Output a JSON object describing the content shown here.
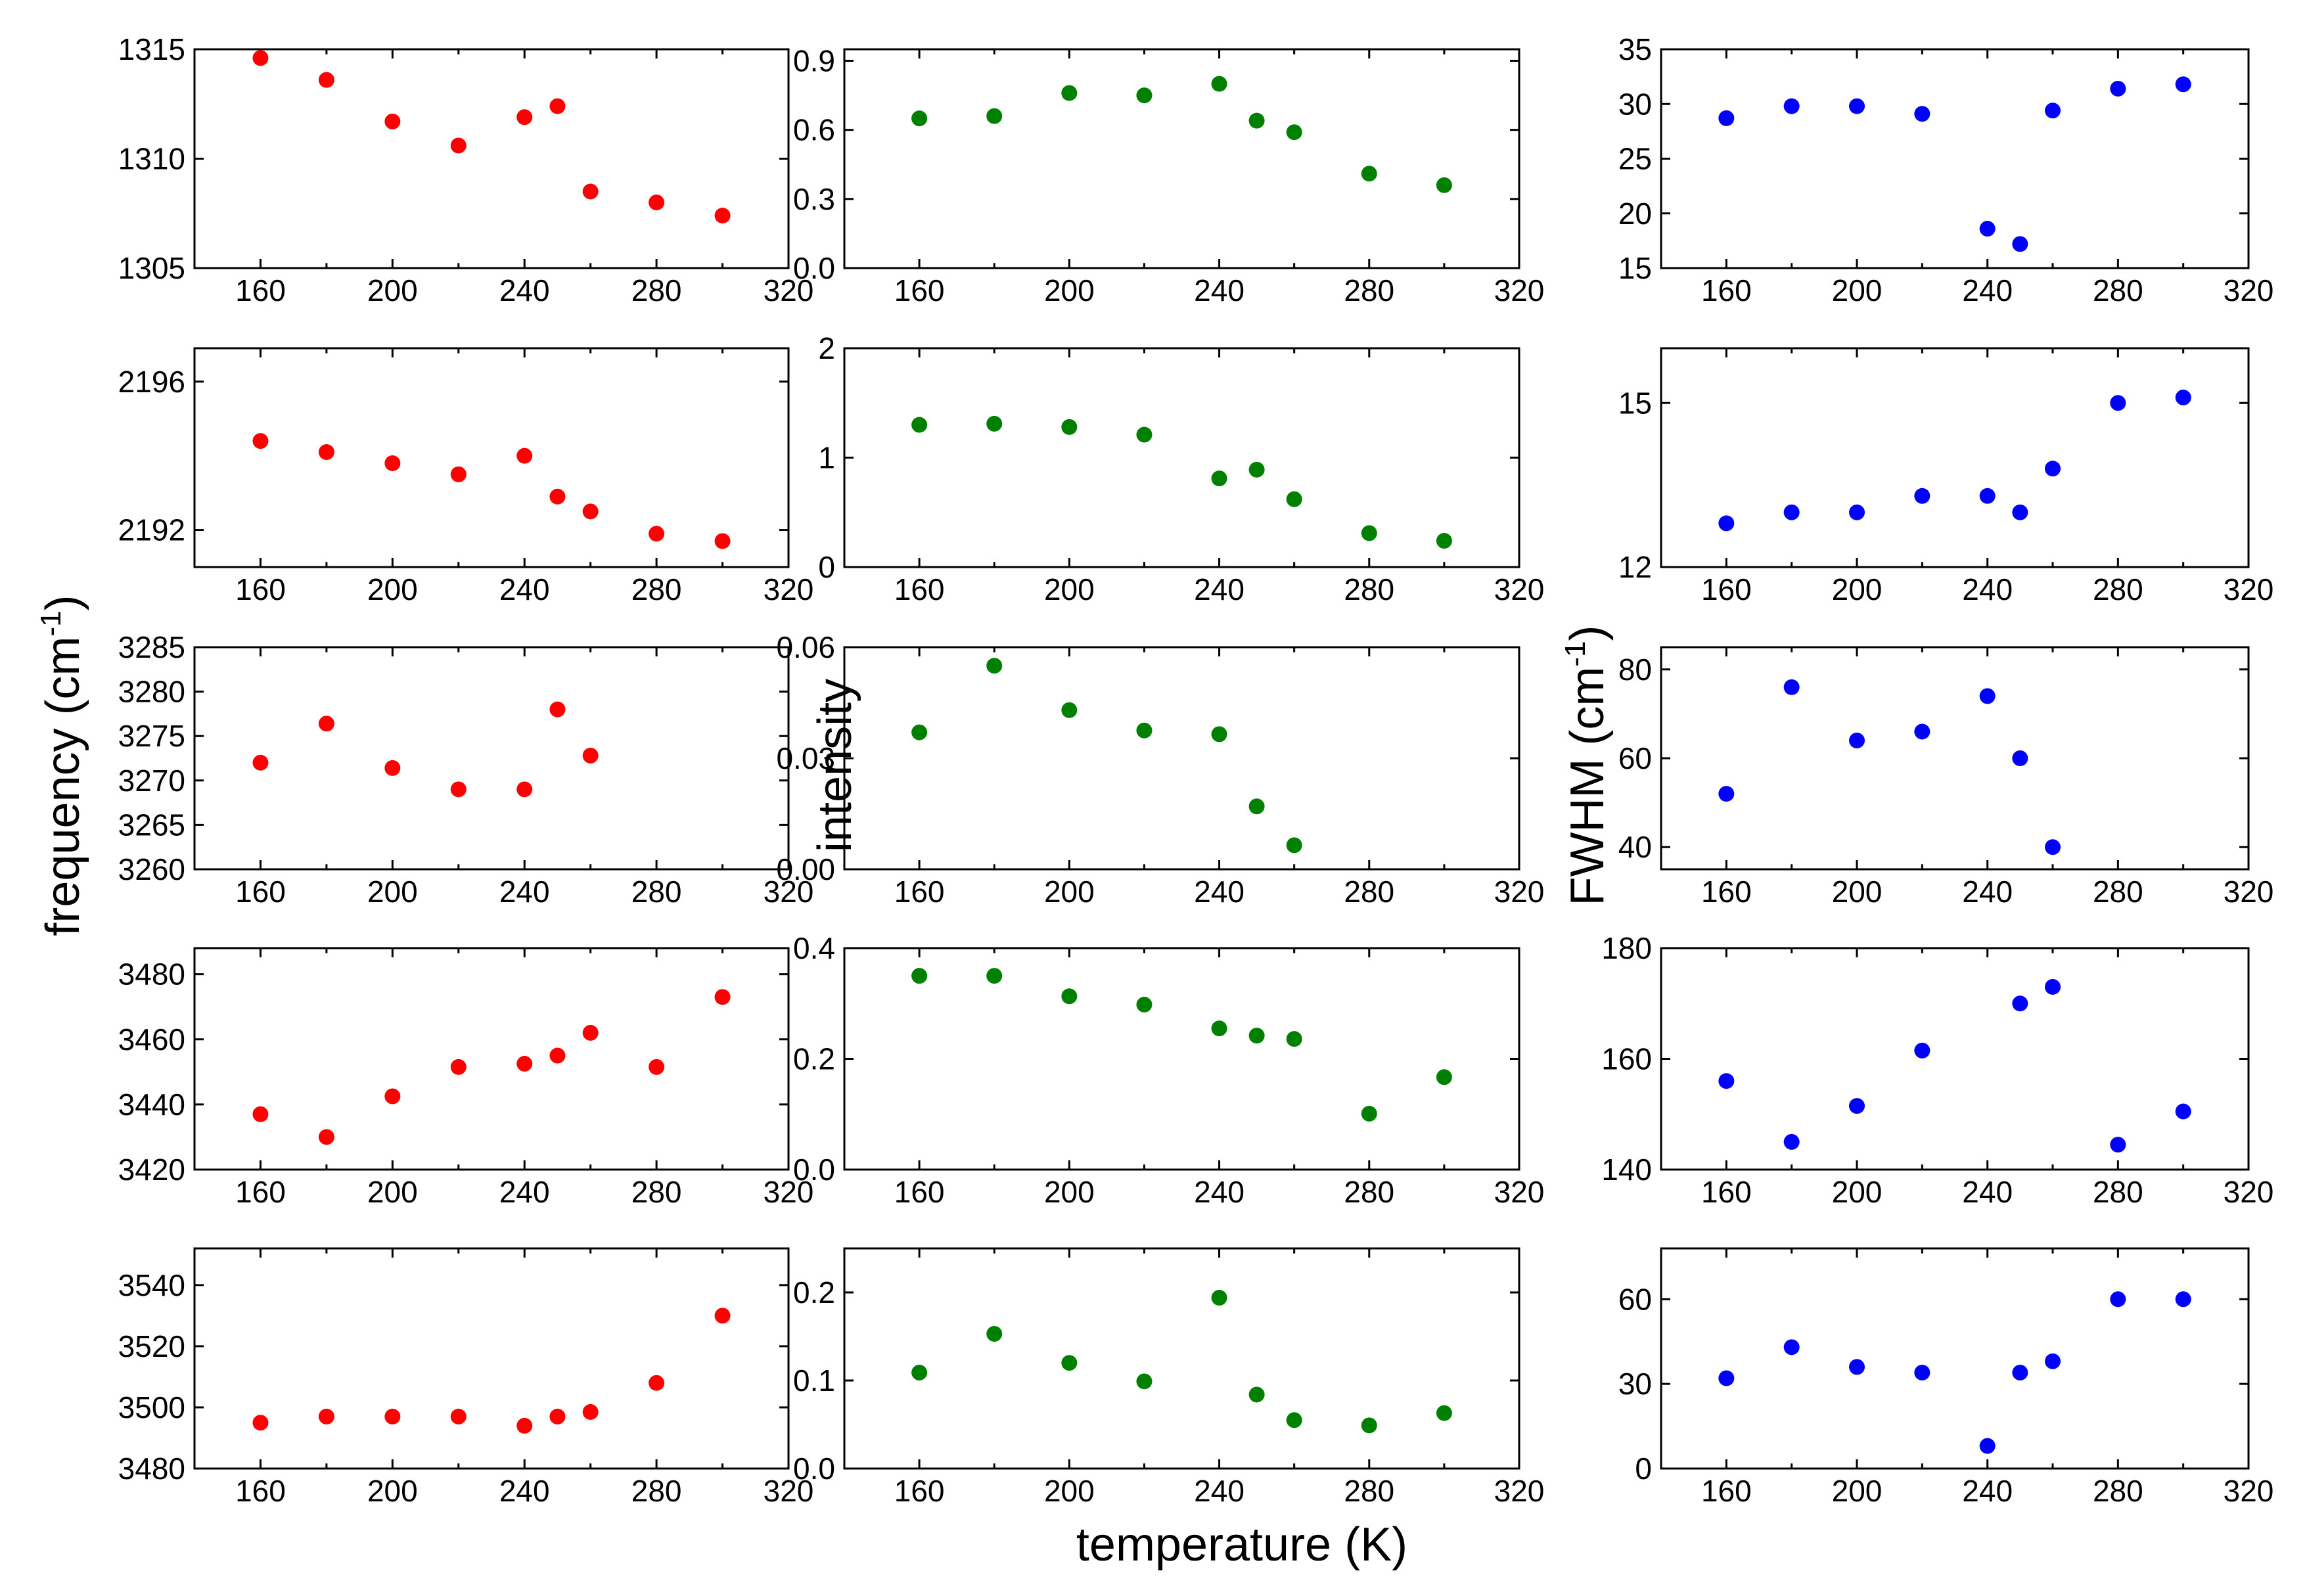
{
  "figure": {
    "ylabels": {
      "left": "frequency (cm",
      "middle": "intensity",
      "right": "FWHM (cm"
    },
    "ylabel_unit_exp": "-1",
    "ylabel_close": ")",
    "xlabel": "temperature (K)"
  },
  "colors": {
    "frequency": "#ff0000",
    "intensity": "#008000",
    "fwhm": "#0000ff"
  },
  "chart_data": [
    {
      "type": "scatter",
      "row": 0,
      "col": 0,
      "quantity": "frequency",
      "x": [
        160,
        180,
        200,
        220,
        240,
        250,
        260,
        280,
        300
      ],
      "y": [
        1314.6,
        1313.6,
        1311.7,
        1310.6,
        1311.9,
        1312.4,
        1308.5,
        1308.0,
        1307.4
      ],
      "xlim": [
        140,
        320
      ],
      "xticks": [
        160,
        200,
        240,
        280,
        320
      ],
      "ylim": [
        1305,
        1315
      ],
      "yticks": [
        1305,
        1310,
        1315
      ],
      "ytick_labels": [
        "1305",
        "1310",
        "1315"
      ]
    },
    {
      "type": "scatter",
      "row": 0,
      "col": 1,
      "quantity": "intensity",
      "x": [
        160,
        180,
        200,
        220,
        240,
        250,
        260,
        280,
        300
      ],
      "y": [
        0.65,
        0.66,
        0.76,
        0.75,
        0.8,
        0.64,
        0.59,
        0.41,
        0.36
      ],
      "xlim": [
        140,
        320
      ],
      "xticks": [
        160,
        200,
        240,
        280,
        320
      ],
      "ylim": [
        0,
        0.95
      ],
      "yticks": [
        0,
        0.3,
        0.6,
        0.9
      ],
      "ytick_labels": [
        "0.0",
        "0.3",
        "0.6",
        "0.9"
      ]
    },
    {
      "type": "scatter",
      "row": 0,
      "col": 2,
      "quantity": "fwhm",
      "x": [
        160,
        180,
        200,
        220,
        240,
        250,
        260,
        280,
        300
      ],
      "y": [
        28.7,
        29.8,
        29.8,
        29.1,
        18.6,
        17.2,
        29.4,
        31.4,
        31.8
      ],
      "xlim": [
        140,
        320
      ],
      "xticks": [
        160,
        200,
        240,
        280,
        320
      ],
      "ylim": [
        15,
        35
      ],
      "yticks": [
        15,
        20,
        25,
        30,
        35
      ],
      "ytick_labels": [
        "15",
        "20",
        "25",
        "30",
        "35"
      ]
    },
    {
      "type": "scatter",
      "row": 1,
      "col": 0,
      "quantity": "frequency",
      "x": [
        160,
        180,
        200,
        220,
        240,
        250,
        260,
        280,
        300
      ],
      "y": [
        2194.4,
        2194.1,
        2193.8,
        2193.5,
        2194.0,
        2192.9,
        2192.5,
        2191.9,
        2191.7
      ],
      "xlim": [
        140,
        320
      ],
      "xticks": [
        160,
        200,
        240,
        280,
        320
      ],
      "ylim": [
        2191.0,
        2196.9
      ],
      "yticks": [
        2192,
        2196
      ],
      "ytick_labels": [
        "2192",
        "2196"
      ]
    },
    {
      "type": "scatter",
      "row": 1,
      "col": 1,
      "quantity": "intensity",
      "x": [
        160,
        180,
        200,
        220,
        240,
        250,
        260,
        280,
        300
      ],
      "y": [
        1.3,
        1.31,
        1.28,
        1.21,
        0.81,
        0.89,
        0.62,
        0.31,
        0.24
      ],
      "xlim": [
        140,
        320
      ],
      "xticks": [
        160,
        200,
        240,
        280,
        320
      ],
      "ylim": [
        0,
        2
      ],
      "yticks": [
        0,
        1,
        2
      ],
      "ytick_labels": [
        "0",
        "1",
        "2"
      ]
    },
    {
      "type": "scatter",
      "row": 1,
      "col": 2,
      "quantity": "fwhm",
      "x": [
        160,
        180,
        200,
        220,
        240,
        250,
        260,
        280,
        300
      ],
      "y": [
        12.8,
        13.0,
        13.0,
        13.3,
        13.3,
        13.0,
        13.8,
        15.0,
        15.1
      ],
      "xlim": [
        140,
        320
      ],
      "xticks": [
        160,
        200,
        240,
        280,
        320
      ],
      "ylim": [
        12,
        16
      ],
      "yticks": [
        12,
        15
      ],
      "ytick_labels": [
        "12",
        "15"
      ]
    },
    {
      "type": "scatter",
      "row": 2,
      "col": 0,
      "quantity": "frequency",
      "x": [
        160,
        180,
        200,
        220,
        240,
        250,
        260
      ],
      "y": [
        3272.0,
        3276.4,
        3271.4,
        3269.0,
        3269.0,
        3278.0,
        3272.8
      ],
      "xlim": [
        140,
        320
      ],
      "xticks": [
        160,
        200,
        240,
        280,
        320
      ],
      "ylim": [
        3260,
        3285
      ],
      "yticks": [
        3260,
        3265,
        3270,
        3275,
        3280,
        3285
      ],
      "ytick_labels": [
        "3260",
        "3265",
        "3270",
        "3275",
        "3280",
        "3285"
      ]
    },
    {
      "type": "scatter",
      "row": 2,
      "col": 1,
      "quantity": "intensity",
      "x": [
        160,
        180,
        200,
        220,
        240,
        250,
        260
      ],
      "y": [
        0.037,
        0.055,
        0.043,
        0.0375,
        0.0365,
        0.017,
        0.0065
      ],
      "xlim": [
        140,
        320
      ],
      "xticks": [
        160,
        200,
        240,
        280,
        320
      ],
      "ylim": [
        0,
        0.06
      ],
      "yticks": [
        0,
        0.03,
        0.06
      ],
      "ytick_labels": [
        "0.00",
        "0.03",
        "0.06"
      ]
    },
    {
      "type": "scatter",
      "row": 2,
      "col": 2,
      "quantity": "fwhm",
      "x": [
        160,
        180,
        200,
        220,
        240,
        250,
        260
      ],
      "y": [
        52,
        76,
        64,
        66,
        74,
        60,
        40
      ],
      "xlim": [
        140,
        320
      ],
      "xticks": [
        160,
        200,
        240,
        280,
        320
      ],
      "ylim": [
        35,
        85
      ],
      "yticks": [
        40,
        60,
        80
      ],
      "ytick_labels": [
        "40",
        "60",
        "80"
      ]
    },
    {
      "type": "scatter",
      "row": 3,
      "col": 0,
      "quantity": "frequency",
      "x": [
        160,
        180,
        200,
        220,
        240,
        250,
        260,
        280,
        300
      ],
      "y": [
        3437,
        3430,
        3442.5,
        3451.5,
        3452.5,
        3455,
        3462,
        3451.5,
        3473
      ],
      "xlim": [
        140,
        320
      ],
      "xticks": [
        160,
        200,
        240,
        280,
        320
      ],
      "ylim": [
        3420,
        3488
      ],
      "yticks": [
        3420,
        3440,
        3460,
        3480
      ],
      "ytick_labels": [
        "3420",
        "3440",
        "3460",
        "3480"
      ]
    },
    {
      "type": "scatter",
      "row": 3,
      "col": 1,
      "quantity": "intensity",
      "x": [
        160,
        180,
        200,
        220,
        240,
        250,
        260,
        280,
        300
      ],
      "y": [
        0.35,
        0.35,
        0.313,
        0.298,
        0.255,
        0.242,
        0.236,
        0.101,
        0.167
      ],
      "xlim": [
        140,
        320
      ],
      "xticks": [
        160,
        200,
        240,
        280,
        320
      ],
      "ylim": [
        0,
        0.4
      ],
      "yticks": [
        0,
        0.2,
        0.4
      ],
      "ytick_labels": [
        "0.0",
        "0.2",
        "0.4"
      ]
    },
    {
      "type": "scatter",
      "row": 3,
      "col": 2,
      "quantity": "fwhm",
      "x": [
        160,
        180,
        200,
        220,
        240,
        250,
        260,
        280,
        300
      ],
      "y": [
        156,
        145,
        151.5,
        161.5,
        null,
        170,
        173,
        144.5,
        150.5
      ],
      "xlim": [
        140,
        320
      ],
      "xticks": [
        160,
        200,
        240,
        280,
        320
      ],
      "ylim": [
        140,
        180
      ],
      "yticks": [
        140,
        160,
        180
      ],
      "ytick_labels": [
        "140",
        "160",
        "180"
      ]
    },
    {
      "type": "scatter",
      "row": 4,
      "col": 0,
      "quantity": "frequency",
      "x": [
        160,
        180,
        200,
        220,
        240,
        250,
        260,
        280,
        300
      ],
      "y": [
        3495,
        3497,
        3497,
        3497,
        3494,
        3497,
        3498.5,
        3508,
        3530
      ],
      "xlim": [
        140,
        320
      ],
      "xticks": [
        160,
        200,
        240,
        280,
        320
      ],
      "ylim": [
        3480,
        3552
      ],
      "yticks": [
        3480,
        3500,
        3520,
        3540
      ],
      "ytick_labels": [
        "3480",
        "3500",
        "3520",
        "3540"
      ]
    },
    {
      "type": "scatter",
      "row": 4,
      "col": 1,
      "quantity": "intensity",
      "x": [
        160,
        180,
        200,
        220,
        240,
        250,
        260,
        280,
        300
      ],
      "y": [
        0.109,
        0.153,
        0.12,
        0.099,
        0.194,
        0.084,
        0.055,
        0.049,
        0.063
      ],
      "xlim": [
        140,
        320
      ],
      "xticks": [
        160,
        200,
        240,
        280,
        320
      ],
      "ylim": [
        0,
        0.25
      ],
      "yticks": [
        0,
        0.1,
        0.2
      ],
      "ytick_labels": [
        "0.0",
        "0.1",
        "0.2"
      ]
    },
    {
      "type": "scatter",
      "row": 4,
      "col": 2,
      "quantity": "fwhm",
      "x": [
        160,
        180,
        200,
        220,
        240,
        250,
        260,
        280,
        300
      ],
      "y": [
        32,
        43,
        36,
        34,
        8,
        34,
        38,
        60,
        60
      ],
      "xlim": [
        140,
        320
      ],
      "xticks": [
        160,
        200,
        240,
        280,
        320
      ],
      "ylim": [
        0,
        78
      ],
      "yticks": [
        0,
        30,
        60
      ],
      "ytick_labels": [
        "0",
        "30",
        "60"
      ]
    }
  ]
}
